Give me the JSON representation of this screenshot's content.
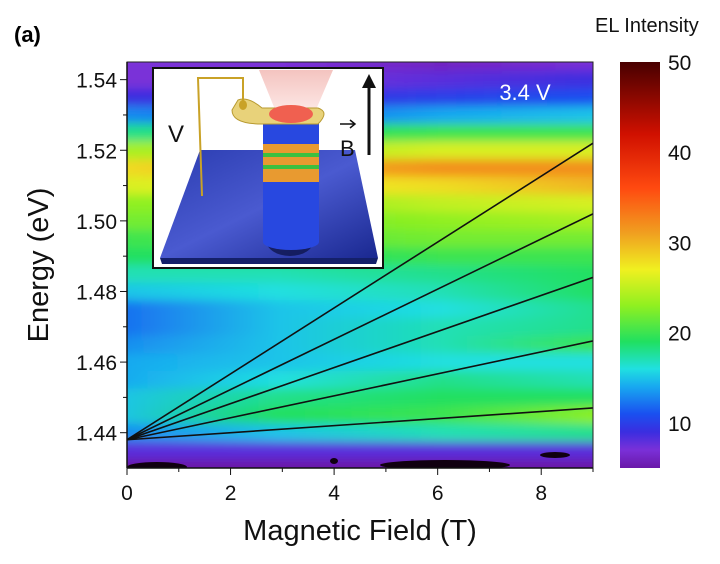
{
  "panel_label": "(a)",
  "chart_data": {
    "type": "heatmap",
    "xlabel": "Magnetic Field (T)",
    "ylabel": "Energy (eV)",
    "xlim": [
      0,
      9
    ],
    "ylim": [
      1.43,
      1.545
    ],
    "xticks": [
      "0",
      "2",
      "4",
      "6",
      "8"
    ],
    "yticks": [
      "1.44",
      "1.46",
      "1.48",
      "1.50",
      "1.52",
      "1.54"
    ],
    "annotation": "3.4 V",
    "colorbar": {
      "label": "EL Intensity",
      "range": [
        5,
        50
      ],
      "ticks": [
        "10",
        "20",
        "30",
        "40",
        "50"
      ]
    },
    "fields": [
      0,
      3,
      6,
      9
    ],
    "energies": [
      1.545,
      1.54,
      1.535,
      1.53,
      1.525,
      1.52,
      1.515,
      1.51,
      1.505,
      1.5,
      1.495,
      1.49,
      1.485,
      1.48,
      1.475,
      1.47,
      1.465,
      1.46,
      1.455,
      1.45,
      1.445,
      1.44,
      1.435,
      1.43
    ],
    "intensity": [
      [
        7,
        7,
        6,
        7
      ],
      [
        7,
        7,
        8,
        9
      ],
      [
        9,
        9,
        10,
        11
      ],
      [
        13,
        12,
        14,
        15
      ],
      [
        18,
        19,
        20,
        20
      ],
      [
        24,
        24,
        26,
        26
      ],
      [
        28,
        30,
        32,
        32
      ],
      [
        26,
        27,
        28,
        30
      ],
      [
        23,
        23,
        25,
        26
      ],
      [
        22,
        22,
        23,
        24
      ],
      [
        20,
        21,
        22,
        22
      ],
      [
        19,
        19,
        20,
        20
      ],
      [
        17,
        17,
        18,
        19
      ],
      [
        15,
        16,
        17,
        19
      ],
      [
        12,
        15,
        16,
        18
      ],
      [
        12,
        15,
        17,
        18
      ],
      [
        13,
        15,
        17,
        20
      ],
      [
        14,
        15,
        16,
        16
      ],
      [
        14,
        16,
        18,
        17
      ],
      [
        15,
        18,
        19,
        19
      ],
      [
        15,
        19,
        20,
        23
      ],
      [
        13,
        15,
        17,
        18
      ],
      [
        8,
        8,
        8,
        8
      ],
      [
        5,
        5,
        5,
        5
      ]
    ],
    "fit_lines": [
      {
        "start": [
          0,
          1.438
        ],
        "end": [
          9,
          1.522
        ]
      },
      {
        "start": [
          0,
          1.438
        ],
        "end": [
          9,
          1.502
        ]
      },
      {
        "start": [
          0,
          1.438
        ],
        "end": [
          9,
          1.484
        ]
      },
      {
        "start": [
          0,
          1.438
        ],
        "end": [
          9,
          1.466
        ]
      },
      {
        "start": [
          0,
          1.438
        ],
        "end": [
          9,
          1.447
        ]
      }
    ]
  },
  "inset": {
    "voltage_label": "V",
    "field_label": "B"
  },
  "colors": {
    "line": "#111111",
    "substrate": "#1d2fa0",
    "pillar": "#2040d8",
    "stripe_orange": "#e89a30",
    "stripe_green": "#3cc040",
    "wire": "#c9a227",
    "emission": "#f06050"
  }
}
